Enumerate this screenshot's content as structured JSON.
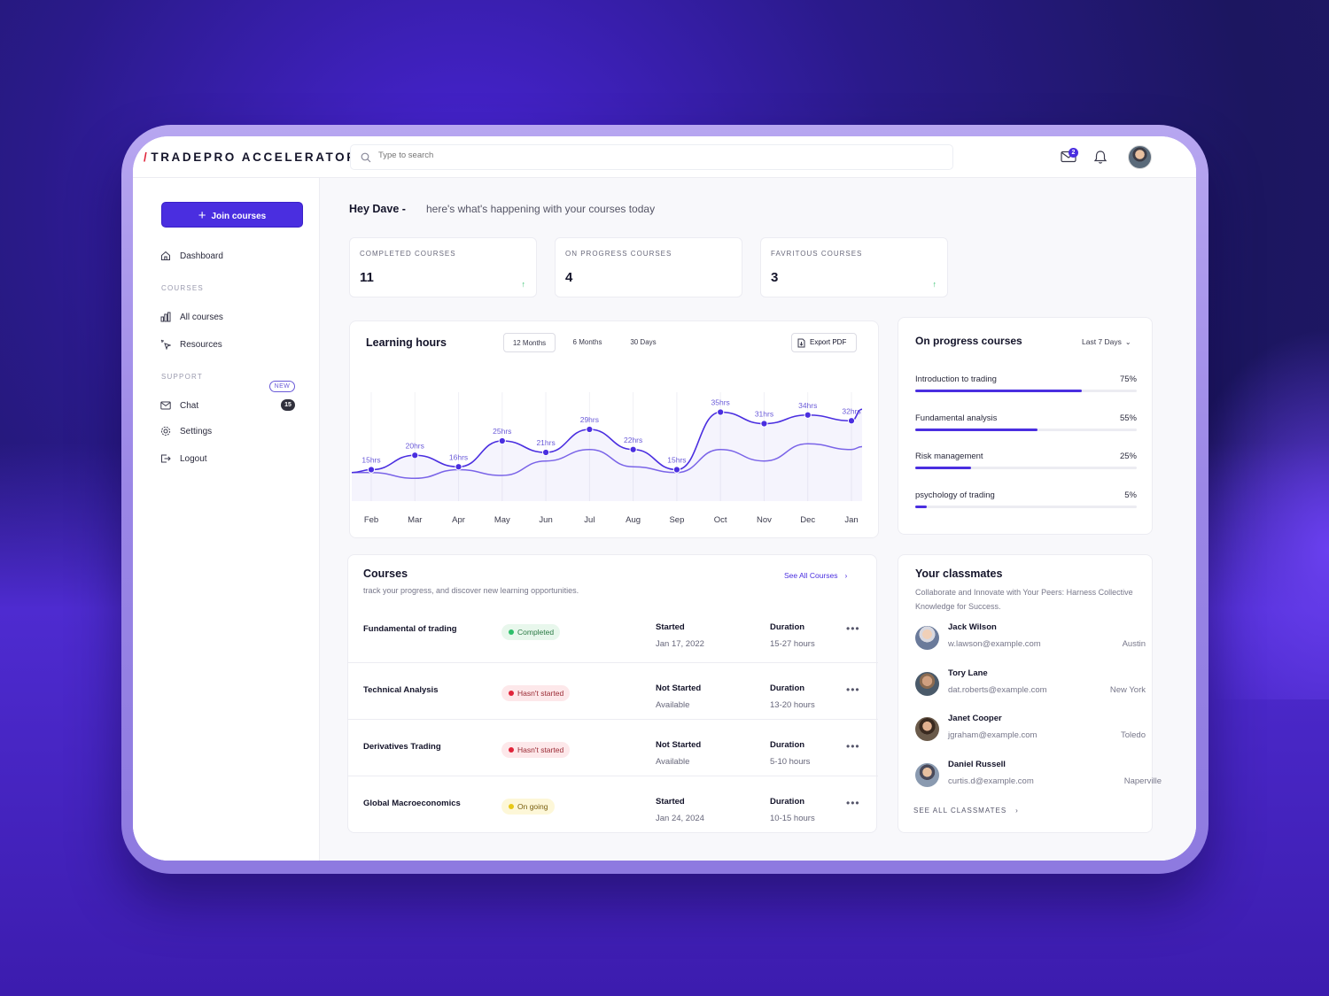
{
  "app": {
    "logo_slash": "/",
    "logo_text": "TRADEPRO ACCELERATOR"
  },
  "search": {
    "placeholder": "Type to search"
  },
  "header": {
    "mail_badge": "2"
  },
  "sidebar": {
    "join_button": "Join courses",
    "dashboard": "Dashboard",
    "courses_section": "COURSES",
    "all_courses": "All courses",
    "resources": "Resources",
    "resources_badge": "NEW",
    "support_section": "SUPPORT",
    "chat": "Chat",
    "chat_badge": "15",
    "settings": "Settings",
    "logout": "Logout"
  },
  "greeting": {
    "name": "Hey Dave -",
    "text": "here's what's happening with your courses today"
  },
  "stats": [
    {
      "label": "COMPLETED COURSES",
      "value": "11",
      "trend": "↑"
    },
    {
      "label": "ON PROGRESS COURSES",
      "value": "4",
      "trend": ""
    },
    {
      "label": "FAVRITOUS  COURSES",
      "value": "3",
      "trend": "↑"
    }
  ],
  "learning_hours": {
    "title": "Learning hours",
    "ranges": [
      "12 Months",
      "6 Months",
      "30 Days"
    ],
    "active_range": "12 Months",
    "export_label": "Export PDF"
  },
  "chart_data": {
    "type": "line",
    "x": [
      "Feb",
      "Mar",
      "Apr",
      "May",
      "Jun",
      "Jul",
      "Aug",
      "Sep",
      "Oct",
      "Nov",
      "Dec",
      "Jan"
    ],
    "series": [
      {
        "name": "",
        "values": [
          15,
          20,
          16,
          25,
          21,
          29,
          22,
          15,
          35,
          31,
          34,
          32
        ],
        "labels": [
          "15hrs",
          "20hrs",
          "16hrs",
          "25hrs",
          "21hrs",
          "29hrs",
          "22hrs",
          "15hrs",
          "35hrs",
          "31hrs",
          "34hrs",
          "32hrs"
        ],
        "color": "#4a2ee0"
      },
      {
        "name": "",
        "values": [
          14,
          12,
          15,
          13,
          18,
          22,
          16,
          14,
          22,
          18,
          24,
          22
        ],
        "color": "#7a64e8"
      }
    ],
    "grid": true,
    "legend": "none"
  },
  "on_progress": {
    "title": "On progress courses",
    "range": "Last 7 Days",
    "items": [
      {
        "label": "Introduction to trading",
        "percent_text": "75%",
        "percent": 75
      },
      {
        "label": "Fundamental analysis",
        "percent_text": "55%",
        "percent": 55
      },
      {
        "label": "Risk management",
        "percent_text": "25%",
        "percent": 25
      },
      {
        "label": "psychology of trading",
        "percent_text": "5%",
        "percent": 5
      }
    ]
  },
  "courses": {
    "title": "Courses",
    "subtitle": "track your progress, and discover new learning opportunities.",
    "see_all": "See All Courses",
    "rows": [
      {
        "name": "Fundamental of trading",
        "status": "Completed",
        "status_color": "green",
        "start_key": "Started",
        "start_val": "Jan 17, 2022",
        "dur_key": "Duration",
        "dur_val": "15-27 hours"
      },
      {
        "name": "Technical Analysis",
        "status": "Hasn't started",
        "status_color": "red",
        "start_key": "Not Started",
        "start_val": "Available",
        "dur_key": "Duration",
        "dur_val": "13-20 hours"
      },
      {
        "name": "Derivatives Trading",
        "status": "Hasn't started",
        "status_color": "red",
        "start_key": "Not Started",
        "start_val": "Available",
        "dur_key": "Duration",
        "dur_val": "5-10 hours"
      },
      {
        "name": "Global Macroeconomics",
        "status": "On going",
        "status_color": "yellow",
        "start_key": "Started",
        "start_val": "Jan 24, 2024",
        "dur_key": "Duration",
        "dur_val": "10-15 hours"
      }
    ],
    "more_glyph": "•••"
  },
  "classmates": {
    "title": "Your classmates",
    "subtitle": "Collaborate and Innovate with Your Peers: Harness Collective Knowledge for Success.",
    "people": [
      {
        "name": "Jack Wilson",
        "email": "w.lawson@example.com",
        "city": "Austin"
      },
      {
        "name": "Tory Lane",
        "email": "dat.roberts@example.com",
        "city": "New York"
      },
      {
        "name": "Janet Cooper",
        "email": "jgraham@example.com",
        "city": "Toledo"
      },
      {
        "name": "Daniel Russell",
        "email": "curtis.d@example.com",
        "city": "Naperville"
      }
    ],
    "see_all": "SEE ALL CLASSMATES"
  }
}
